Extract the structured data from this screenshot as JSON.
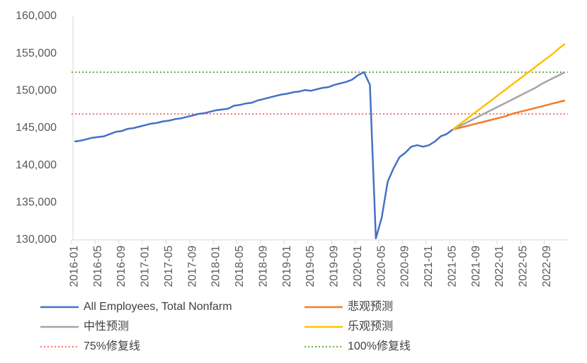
{
  "chart_data": {
    "type": "line",
    "categories": [
      "2016-01",
      null,
      null,
      null,
      "2016-05",
      null,
      null,
      null,
      "2016-09",
      null,
      null,
      null,
      "2017-01",
      null,
      null,
      null,
      "2017-05",
      null,
      null,
      null,
      "2017-09",
      null,
      null,
      null,
      "2018-01",
      null,
      null,
      null,
      "2018-05",
      null,
      null,
      null,
      "2018-09",
      null,
      null,
      null,
      "2019-01",
      null,
      null,
      null,
      "2019-05",
      null,
      null,
      null,
      "2019-09",
      null,
      null,
      null,
      "2020-01",
      null,
      null,
      null,
      "2020-05",
      null,
      null,
      null,
      "2020-09",
      null,
      null,
      null,
      "2021-01",
      null,
      null,
      null,
      "2021-05",
      null,
      null,
      null,
      "2021-09",
      null,
      null,
      null,
      "2022-01",
      null,
      null,
      null,
      "2022-05",
      null,
      null,
      null,
      "2022-09",
      null,
      null,
      null
    ],
    "series": [
      {
        "name": "All Employees, Total Nonfarm",
        "color": "#4472c4",
        "values": [
          143200,
          143300,
          143500,
          143700,
          143800,
          143900,
          144200,
          144500,
          144600,
          144900,
          145000,
          145200,
          145400,
          145600,
          145700,
          145900,
          146000,
          146200,
          146300,
          146500,
          146700,
          146900,
          147000,
          147200,
          147400,
          147500,
          147600,
          148000,
          148100,
          148300,
          148400,
          148700,
          148900,
          149100,
          149300,
          149500,
          149600,
          149800,
          149900,
          150100,
          150000,
          150200,
          150400,
          150500,
          150800,
          151000,
          151200,
          151500,
          152100,
          152500,
          150800,
          130200,
          133000,
          137800,
          139600,
          141100,
          141700,
          142500,
          142700,
          142500,
          142700,
          143200,
          143900,
          144200,
          144800,
          null,
          null,
          null,
          null,
          null,
          null,
          null,
          null,
          null,
          null,
          null,
          null,
          null,
          null,
          null,
          null,
          null,
          null,
          null
        ]
      },
      {
        "name": "悲观预测",
        "color": "#ed7d31",
        "values": [
          null,
          null,
          null,
          null,
          null,
          null,
          null,
          null,
          null,
          null,
          null,
          null,
          null,
          null,
          null,
          null,
          null,
          null,
          null,
          null,
          null,
          null,
          null,
          null,
          null,
          null,
          null,
          null,
          null,
          null,
          null,
          null,
          null,
          null,
          null,
          null,
          null,
          null,
          null,
          null,
          null,
          null,
          null,
          null,
          null,
          null,
          null,
          null,
          null,
          null,
          null,
          null,
          null,
          null,
          null,
          null,
          null,
          null,
          null,
          null,
          null,
          null,
          null,
          null,
          144800,
          145000,
          145200,
          145400,
          145600,
          145800,
          146000,
          146200,
          146400,
          146600,
          146900,
          147100,
          147300,
          147500,
          147700,
          147900,
          148100,
          148300,
          148500,
          148700
        ]
      },
      {
        "name": "中性预测",
        "color": "#a5a5a5",
        "values": [
          null,
          null,
          null,
          null,
          null,
          null,
          null,
          null,
          null,
          null,
          null,
          null,
          null,
          null,
          null,
          null,
          null,
          null,
          null,
          null,
          null,
          null,
          null,
          null,
          null,
          null,
          null,
          null,
          null,
          null,
          null,
          null,
          null,
          null,
          null,
          null,
          null,
          null,
          null,
          null,
          null,
          null,
          null,
          null,
          null,
          null,
          null,
          null,
          null,
          null,
          null,
          null,
          null,
          null,
          null,
          null,
          null,
          null,
          null,
          null,
          null,
          null,
          null,
          null,
          144800,
          145200,
          145600,
          146000,
          146400,
          146800,
          147200,
          147600,
          148000,
          148400,
          148800,
          149200,
          149600,
          150000,
          150400,
          150900,
          151300,
          151700,
          152100,
          152500
        ]
      },
      {
        "name": "乐观预测",
        "color": "#ffc000",
        "values": [
          null,
          null,
          null,
          null,
          null,
          null,
          null,
          null,
          null,
          null,
          null,
          null,
          null,
          null,
          null,
          null,
          null,
          null,
          null,
          null,
          null,
          null,
          null,
          null,
          null,
          null,
          null,
          null,
          null,
          null,
          null,
          null,
          null,
          null,
          null,
          null,
          null,
          null,
          null,
          null,
          null,
          null,
          null,
          null,
          null,
          null,
          null,
          null,
          null,
          null,
          null,
          null,
          null,
          null,
          null,
          null,
          null,
          null,
          null,
          null,
          null,
          null,
          null,
          null,
          144800,
          145400,
          146000,
          146600,
          147200,
          147800,
          148400,
          149000,
          149600,
          150200,
          150800,
          151400,
          152000,
          152600,
          153200,
          153800,
          154400,
          155000,
          155700,
          156300
        ]
      }
    ],
    "reference_lines": [
      {
        "name": "75%修复线",
        "color": "#f4777a",
        "value": 146900
      },
      {
        "name": "100%修复线",
        "color": "#70ad47",
        "value": 152500
      }
    ],
    "ylim": [
      130000,
      160000
    ],
    "yticks": [
      {
        "value": 130000,
        "label": "130,000"
      },
      {
        "value": 135000,
        "label": "135,000"
      },
      {
        "value": 140000,
        "label": "140,000"
      },
      {
        "value": 145000,
        "label": "145,000"
      },
      {
        "value": 150000,
        "label": "150,000"
      },
      {
        "value": 155000,
        "label": "155,000"
      },
      {
        "value": 160000,
        "label": "160,000"
      }
    ],
    "grid": false
  }
}
